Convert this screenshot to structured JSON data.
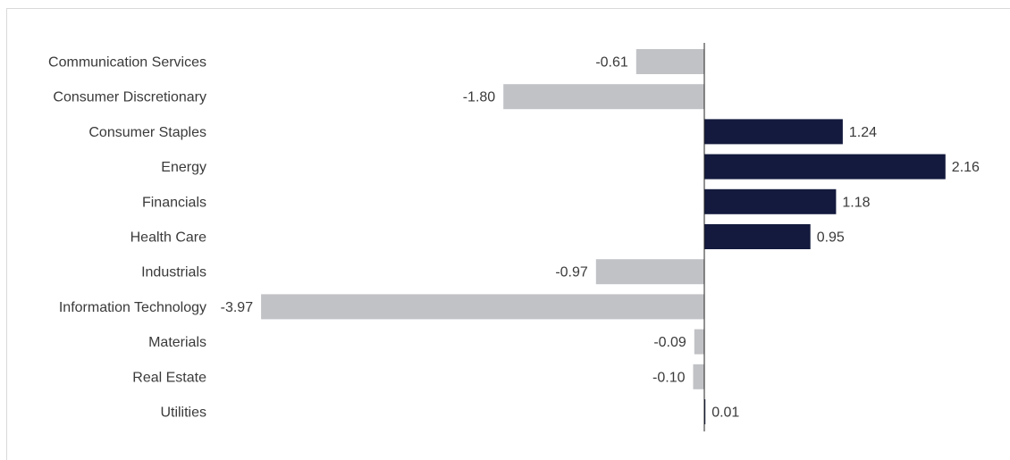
{
  "chart_data": {
    "type": "bar",
    "orientation": "horizontal",
    "categories": [
      "Communication Services",
      "Consumer Discretionary",
      "Consumer Staples",
      "Energy",
      "Financials",
      "Health Care",
      "Industrials",
      "Information Technology",
      "Materials",
      "Real Estate",
      "Utilities"
    ],
    "values": [
      -0.61,
      -1.8,
      1.24,
      2.16,
      1.18,
      0.95,
      -0.97,
      -3.97,
      -0.09,
      -0.1,
      0.01
    ],
    "value_labels": [
      "-0.61",
      "-1.80",
      "1.24",
      "2.16",
      "1.18",
      "0.95",
      "-0.97",
      "-3.97",
      "-0.09",
      "-0.10",
      "0.01"
    ],
    "title": "",
    "xlabel": "",
    "ylabel": "",
    "xlim": [
      -3.97,
      2.16
    ],
    "grid": false,
    "colors": {
      "positive": "#131a3d",
      "negative": "#c1c2c6",
      "axis": "#222222"
    }
  }
}
